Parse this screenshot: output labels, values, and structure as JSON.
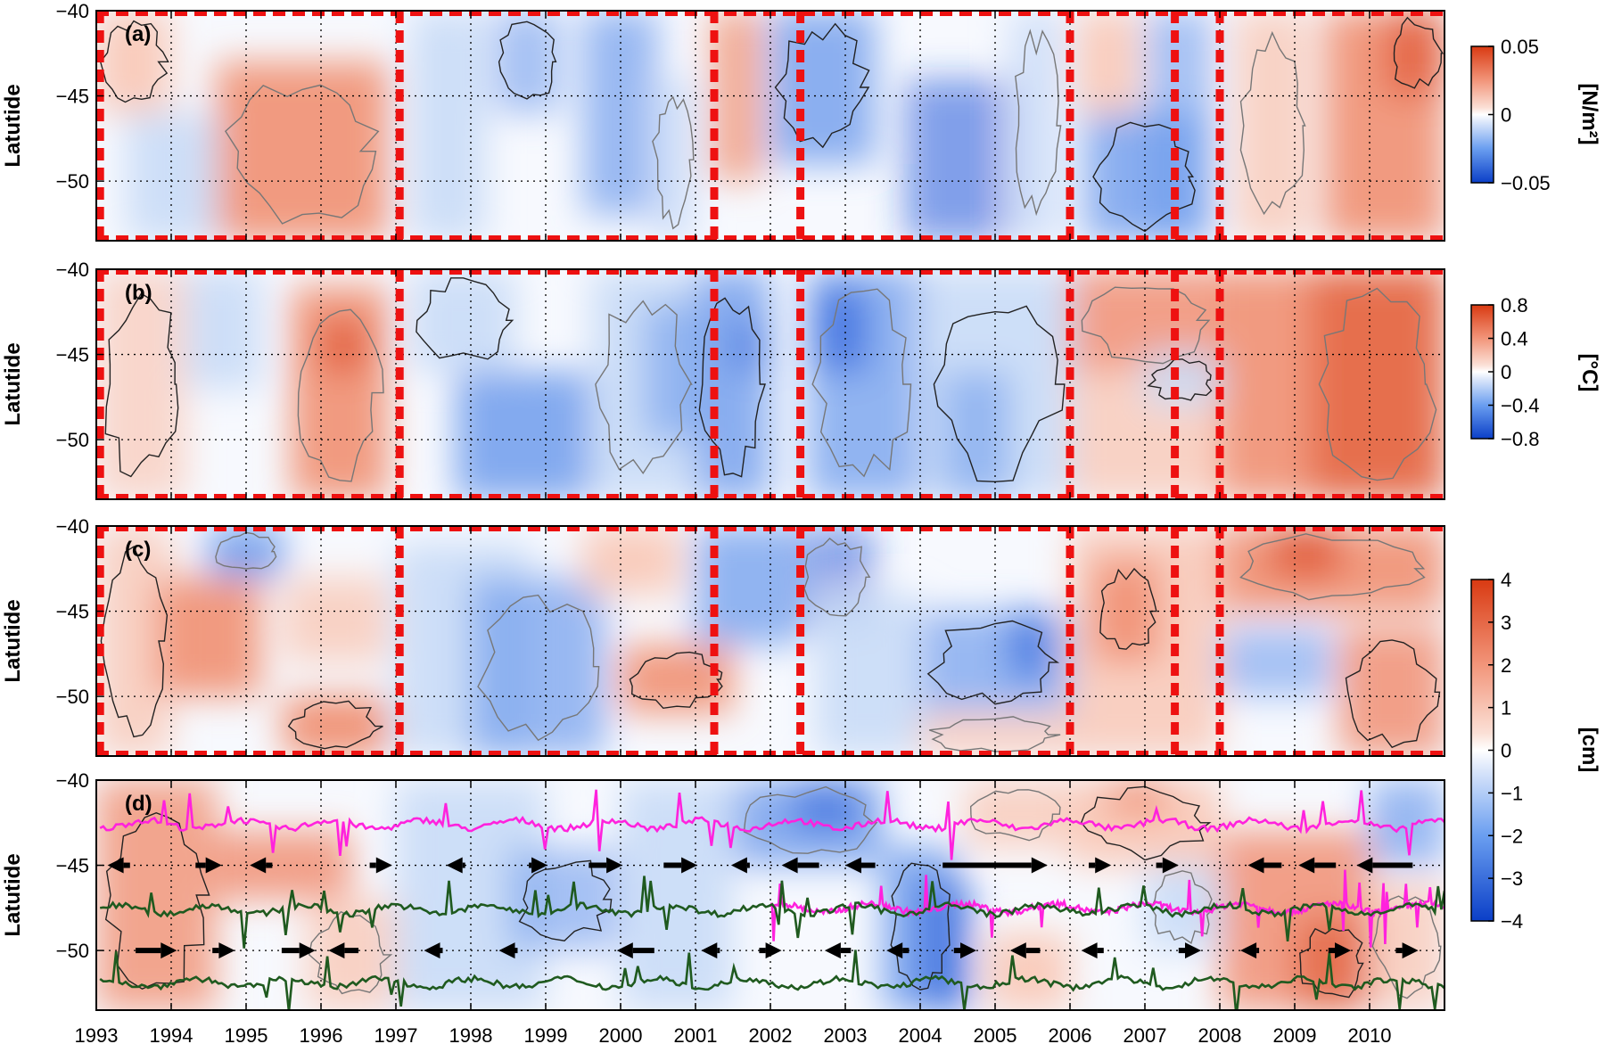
{
  "chart_data": [
    {
      "panel": "(a)",
      "type": "heatmap",
      "ylabel": "Latutide",
      "units": "[N/m²]",
      "colorbar": {
        "min": -0.05,
        "max": 0.05,
        "ticks": [
          "0.05",
          "0",
          "−0.05"
        ]
      },
      "ylim": [
        -53.5,
        -40
      ],
      "yticks": [
        "−40",
        "−45",
        "−50"
      ],
      "xlim": [
        1993,
        2011
      ],
      "event_years": [
        1993.05,
        1997.05,
        2001.25,
        2002.4,
        2006.0,
        2007.4,
        2008.0
      ]
    },
    {
      "panel": "(b)",
      "type": "heatmap",
      "ylabel": "Latutide",
      "units": "[°C]",
      "colorbar": {
        "min": -0.8,
        "max": 0.8,
        "ticks": [
          "0.8",
          "0.4",
          "0",
          "−0.4",
          "−0.8"
        ]
      },
      "ylim": [
        -53.5,
        -40
      ],
      "yticks": [
        "−40",
        "−45",
        "−50"
      ],
      "xlim": [
        1993,
        2011
      ],
      "event_years": [
        1993.05,
        1997.05,
        2001.25,
        2002.4,
        2006.0,
        2007.4,
        2008.0
      ]
    },
    {
      "panel": "(c)",
      "type": "heatmap",
      "ylabel": "Latutide",
      "units": "[cm]",
      "colorbar": {
        "min": -4,
        "max": 4,
        "ticks": [
          "4",
          "3",
          "2",
          "1",
          "0",
          "−1",
          "−2",
          "−3",
          "−4"
        ]
      },
      "ylim": [
        -53.5,
        -40
      ],
      "yticks": [
        "−40",
        "−45",
        "−50"
      ],
      "xlim": [
        1993,
        2011
      ],
      "event_years": [
        1993.05,
        1997.05,
        2001.25,
        2002.4,
        2006.0,
        2007.4,
        2008.0
      ]
    },
    {
      "panel": "(d)",
      "type": "heatmap",
      "ylabel": "Latutide",
      "units": "[cm]",
      "ylim": [
        -53.5,
        -40
      ],
      "yticks": [
        "−40",
        "−45",
        "−50"
      ],
      "xlim": [
        1993,
        2011
      ],
      "xticks": [
        "1993",
        "1994",
        "1995",
        "1996",
        "1997",
        "1998",
        "1999",
        "2000",
        "2001",
        "2002",
        "2003",
        "2004",
        "2005",
        "2006",
        "2007",
        "2008",
        "2009",
        "2010"
      ],
      "front_lines": [
        {
          "color": "#ff22dd",
          "mean_lat": -42.6
        },
        {
          "color": "#ff22dd",
          "mean_lat": -47.5
        },
        {
          "color": "#1f5a1f",
          "mean_lat": -47.6
        },
        {
          "color": "#1f5a1f",
          "mean_lat": -51.9
        }
      ],
      "arrows": [
        {
          "lat": -45,
          "year": 1993.3,
          "dir": "left",
          "len": 0.3
        },
        {
          "lat": -45,
          "year": 1994.5,
          "dir": "right",
          "len": 0.35
        },
        {
          "lat": -45,
          "year": 1995.2,
          "dir": "left",
          "len": 0.3
        },
        {
          "lat": -45,
          "year": 1996.8,
          "dir": "right",
          "len": 0.3
        },
        {
          "lat": -45,
          "year": 1997.8,
          "dir": "left",
          "len": 0.25
        },
        {
          "lat": -45,
          "year": 1998.9,
          "dir": "right",
          "len": 0.25
        },
        {
          "lat": -45,
          "year": 1999.8,
          "dir": "right",
          "len": 0.45
        },
        {
          "lat": -45,
          "year": 2000.8,
          "dir": "right",
          "len": 0.45
        },
        {
          "lat": -45,
          "year": 2001.6,
          "dir": "left",
          "len": 0.25
        },
        {
          "lat": -45,
          "year": 2002.4,
          "dir": "left",
          "len": 0.5
        },
        {
          "lat": -45,
          "year": 2003.2,
          "dir": "left",
          "len": 0.4
        },
        {
          "lat": -45,
          "year": 2005.0,
          "dir": "right",
          "len": 1.4
        },
        {
          "lat": -45,
          "year": 2006.4,
          "dir": "right",
          "len": 0.3
        },
        {
          "lat": -45,
          "year": 2007.3,
          "dir": "right",
          "len": 0.3
        },
        {
          "lat": -45,
          "year": 2008.6,
          "dir": "left",
          "len": 0.45
        },
        {
          "lat": -45,
          "year": 2009.3,
          "dir": "left",
          "len": 0.5
        },
        {
          "lat": -45,
          "year": 2010.2,
          "dir": "left",
          "len": 0.75
        },
        {
          "lat": -50,
          "year": 1993.8,
          "dir": "right",
          "len": 0.55
        },
        {
          "lat": -50,
          "year": 1994.7,
          "dir": "right",
          "len": 0.3
        },
        {
          "lat": -50,
          "year": 1995.7,
          "dir": "right",
          "len": 0.45
        },
        {
          "lat": -50,
          "year": 1996.3,
          "dir": "left",
          "len": 0.4
        },
        {
          "lat": -50,
          "year": 1997.5,
          "dir": "left",
          "len": 0.25
        },
        {
          "lat": -50,
          "year": 1998.5,
          "dir": "left",
          "len": 0.25
        },
        {
          "lat": -50,
          "year": 2000.2,
          "dir": "left",
          "len": 0.5
        },
        {
          "lat": -50,
          "year": 2001.2,
          "dir": "left",
          "len": 0.25
        },
        {
          "lat": -50,
          "year": 2002.0,
          "dir": "right",
          "len": 0.3
        },
        {
          "lat": -50,
          "year": 2002.9,
          "dir": "left",
          "len": 0.35
        },
        {
          "lat": -50,
          "year": 2003.7,
          "dir": "left",
          "len": 0.3
        },
        {
          "lat": -50,
          "year": 2004.6,
          "dir": "right",
          "len": 0.3
        },
        {
          "lat": -50,
          "year": 2005.4,
          "dir": "left",
          "len": 0.4
        },
        {
          "lat": -50,
          "year": 2006.3,
          "dir": "left",
          "len": 0.3
        },
        {
          "lat": -50,
          "year": 2007.6,
          "dir": "right",
          "len": 0.3
        },
        {
          "lat": -50,
          "year": 2008.4,
          "dir": "left",
          "len": 0.25
        },
        {
          "lat": -50,
          "year": 2009.6,
          "dir": "right",
          "len": 0.3
        },
        {
          "lat": -50,
          "year": 2010.5,
          "dir": "right",
          "len": 0.3
        }
      ]
    }
  ]
}
